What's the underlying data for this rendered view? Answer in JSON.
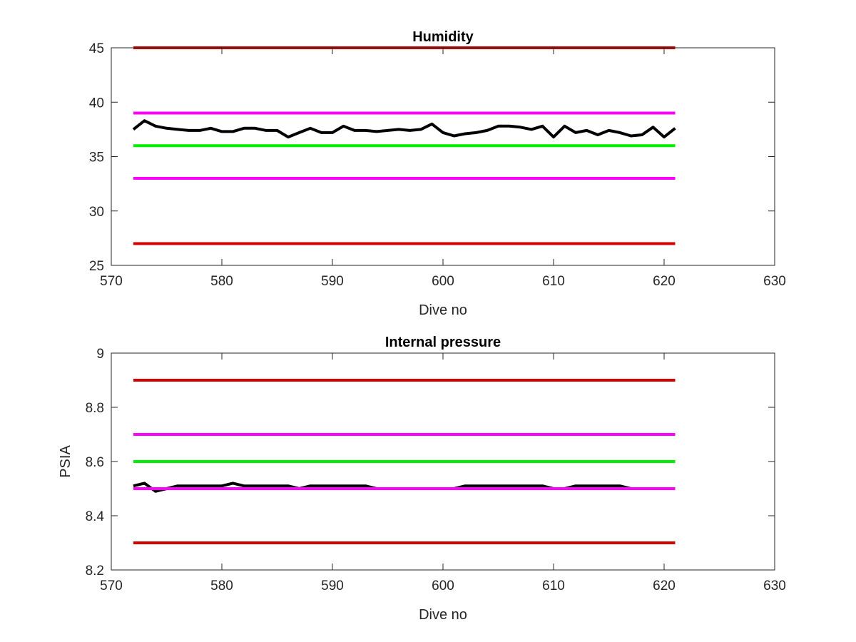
{
  "chart_data": [
    {
      "type": "line",
      "title": "Humidity",
      "xlabel": "Dive no",
      "ylabel": "",
      "xlim": [
        570,
        630
      ],
      "ylim": [
        25,
        45
      ],
      "xticks": [
        570,
        580,
        590,
        600,
        610,
        620,
        630
      ],
      "yticks": [
        25,
        30,
        35,
        40,
        45
      ],
      "grid": false,
      "legend": "none",
      "series": [
        {
          "color": "#000000",
          "x": [
            572,
            573,
            574,
            575,
            576,
            577,
            578,
            579,
            580,
            581,
            582,
            583,
            584,
            585,
            586,
            587,
            588,
            589,
            590,
            591,
            592,
            593,
            594,
            595,
            596,
            597,
            598,
            599,
            600,
            601,
            602,
            603,
            604,
            605,
            606,
            607,
            608,
            609,
            610,
            611,
            612,
            613,
            614,
            615,
            616,
            617,
            618,
            619,
            620,
            621
          ],
          "y": [
            37.5,
            38.3,
            37.8,
            37.6,
            37.5,
            37.4,
            37.4,
            37.6,
            37.3,
            37.3,
            37.6,
            37.6,
            37.4,
            37.4,
            36.8,
            37.2,
            37.6,
            37.2,
            37.2,
            37.8,
            37.4,
            37.4,
            37.3,
            37.4,
            37.5,
            37.4,
            37.5,
            38.0,
            37.2,
            36.9,
            37.1,
            37.2,
            37.4,
            37.8,
            37.8,
            37.7,
            37.5,
            37.8,
            36.8,
            37.8,
            37.2,
            37.4,
            37.0,
            37.4,
            37.2,
            36.9,
            37.0,
            37.7,
            36.8,
            37.6
          ]
        },
        {
          "color": "#d40000",
          "x": [
            572,
            621
          ],
          "y": [
            45,
            45
          ]
        },
        {
          "color": "#ff00ff",
          "x": [
            572,
            621
          ],
          "y": [
            39,
            39
          ]
        },
        {
          "color": "#00ee00",
          "x": [
            572,
            621
          ],
          "y": [
            36,
            36
          ]
        },
        {
          "color": "#ff00ff",
          "x": [
            572,
            621
          ],
          "y": [
            33,
            33
          ]
        },
        {
          "color": "#d40000",
          "x": [
            572,
            621
          ],
          "y": [
            27,
            27
          ]
        }
      ]
    },
    {
      "type": "line",
      "title": "Internal pressure",
      "xlabel": "Dive no",
      "ylabel": "PSIA",
      "xlim": [
        570,
        630
      ],
      "ylim": [
        8.2,
        9
      ],
      "xticks": [
        570,
        580,
        590,
        600,
        610,
        620,
        630
      ],
      "yticks": [
        8.2,
        8.4,
        8.6,
        8.8,
        9
      ],
      "grid": false,
      "legend": "none",
      "series": [
        {
          "color": "#000000",
          "x": [
            572,
            573,
            574,
            575,
            576,
            577,
            578,
            579,
            580,
            581,
            582,
            583,
            584,
            585,
            586,
            587,
            588,
            589,
            590,
            591,
            592,
            593,
            594,
            595,
            596,
            597,
            598,
            599,
            600,
            601,
            602,
            603,
            604,
            605,
            606,
            607,
            608,
            609,
            610,
            611,
            612,
            613,
            614,
            615,
            616,
            617,
            618,
            619,
            620,
            621
          ],
          "y": [
            8.51,
            8.52,
            8.49,
            8.5,
            8.51,
            8.51,
            8.51,
            8.51,
            8.51,
            8.52,
            8.51,
            8.51,
            8.51,
            8.51,
            8.51,
            8.5,
            8.51,
            8.51,
            8.51,
            8.51,
            8.51,
            8.51,
            8.5,
            8.5,
            8.5,
            8.5,
            8.5,
            8.5,
            8.5,
            8.5,
            8.51,
            8.51,
            8.51,
            8.51,
            8.51,
            8.51,
            8.51,
            8.51,
            8.5,
            8.5,
            8.51,
            8.51,
            8.51,
            8.51,
            8.51,
            8.5,
            8.5,
            8.5,
            8.5,
            8.5
          ]
        },
        {
          "color": "#d40000",
          "x": [
            572,
            621
          ],
          "y": [
            8.9,
            8.9
          ]
        },
        {
          "color": "#ff00ff",
          "x": [
            572,
            621
          ],
          "y": [
            8.7,
            8.7
          ]
        },
        {
          "color": "#00ee00",
          "x": [
            572,
            621
          ],
          "y": [
            8.6,
            8.6
          ]
        },
        {
          "color": "#ff00ff",
          "x": [
            572,
            621
          ],
          "y": [
            8.5,
            8.5
          ]
        },
        {
          "color": "#d40000",
          "x": [
            572,
            621
          ],
          "y": [
            8.3,
            8.3
          ]
        }
      ]
    }
  ]
}
